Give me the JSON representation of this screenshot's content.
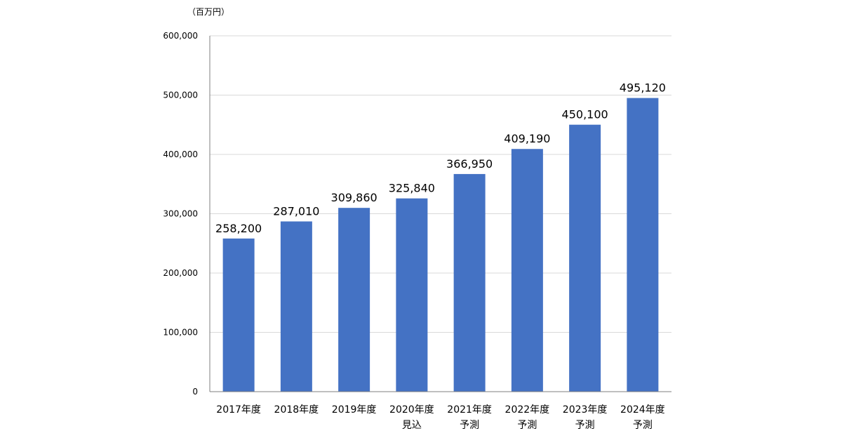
{
  "chart_data": {
    "type": "bar",
    "unit_label": "（百万円）",
    "categories": [
      [
        "2017年度"
      ],
      [
        "2018年度"
      ],
      [
        "2019年度"
      ],
      [
        "2020年度",
        "見込"
      ],
      [
        "2021年度",
        "予測"
      ],
      [
        "2022年度",
        "予測"
      ],
      [
        "2023年度",
        "予測"
      ],
      [
        "2024年度",
        "予測"
      ]
    ],
    "values": [
      258200,
      287010,
      309860,
      325840,
      366950,
      409190,
      450100,
      495120
    ],
    "value_labels": [
      "258,200",
      "287,010",
      "309,860",
      "325,840",
      "366,950",
      "409,190",
      "450,100",
      "495,120"
    ],
    "ylim": [
      0,
      600000
    ],
    "yticks": [
      0,
      100000,
      200000,
      300000,
      400000,
      500000,
      600000
    ],
    "ytick_labels": [
      "0",
      "100,000",
      "200,000",
      "300,000",
      "400,000",
      "500,000",
      "600,000"
    ],
    "grid": true,
    "bar_color": "#4472C4",
    "grid_color": "#d9d9d9",
    "axis_color": "#7f7f7f"
  }
}
